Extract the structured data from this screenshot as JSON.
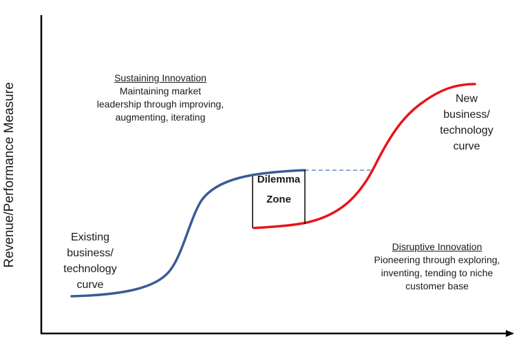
{
  "axis": {
    "y_label": "Revenue/Performance Measure"
  },
  "sustaining": {
    "heading": "Sustaining Innovation",
    "lines": [
      "Maintaining market",
      "leadership through improving,",
      "augmenting, iterating"
    ]
  },
  "disruptive": {
    "heading": "Disruptive Innovation",
    "lines": [
      "Pioneering through exploring,",
      "inventing, tending to niche",
      "customer base"
    ]
  },
  "existing_curve": {
    "lines": [
      "Existing",
      "business/",
      "technology",
      "curve"
    ],
    "color": "#3a5a98"
  },
  "new_curve": {
    "lines": [
      "New",
      "business/",
      "technology",
      "curve"
    ],
    "color": "#e8141a"
  },
  "dilemma": {
    "lines": [
      "Dilemma",
      "Zone"
    ]
  },
  "colors": {
    "axis": "#000000",
    "dashed": "#4a72b8",
    "box": "#000000"
  }
}
